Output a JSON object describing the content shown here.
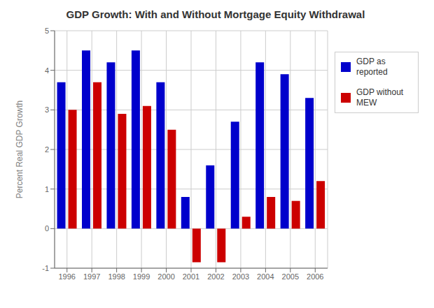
{
  "chart_data": {
    "type": "bar",
    "title": "GDP Growth: With and Without Mortgage Equity Withdrawal",
    "ylabel": "Percent Real GDP Growth",
    "categories": [
      "1996",
      "1997",
      "1998",
      "1999",
      "2000",
      "2001",
      "2002",
      "2003",
      "2004",
      "2005",
      "2006"
    ],
    "series": [
      {
        "name": "GDP as\nreported",
        "color": "#0000cc",
        "values": [
          3.7,
          4.5,
          4.2,
          4.5,
          3.7,
          0.8,
          1.6,
          2.7,
          4.2,
          3.9,
          3.3
        ]
      },
      {
        "name": "GDP without\nMEW",
        "color": "#cc0000",
        "values": [
          3.0,
          3.7,
          2.9,
          3.1,
          2.5,
          -0.85,
          -0.85,
          0.3,
          0.8,
          0.7,
          1.2
        ]
      }
    ],
    "ylim": [
      -1,
      5
    ],
    "yticks": [
      -1,
      0,
      1,
      2,
      3,
      4,
      5
    ],
    "grid": true,
    "legend": "right"
  }
}
